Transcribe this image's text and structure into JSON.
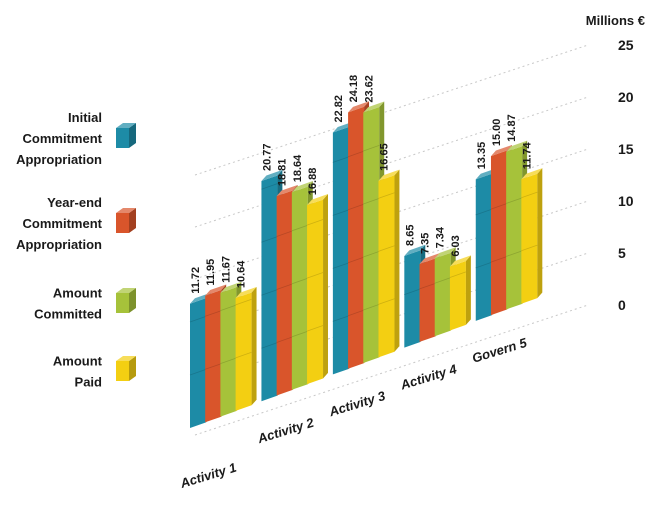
{
  "chart_data": {
    "type": "bar",
    "unit_label": "Millions €",
    "ylim": [
      0,
      25
    ],
    "yticks": [
      0,
      5,
      10,
      15,
      20,
      25
    ],
    "categories": [
      "Activity 1",
      "Activity 2",
      "Activity 3",
      "Activity 4",
      "Govern 5"
    ],
    "series": [
      {
        "name": "Initial Commitment Appropriation",
        "legend_lines": [
          "Initial",
          "Commitment",
          "Appropriation"
        ],
        "color": "#1d8ba6",
        "values": [
          11.72,
          20.77,
          22.82,
          8.65,
          13.35
        ],
        "labels": [
          "11.72",
          "20.77",
          "22.82",
          "8.65",
          "13.35"
        ]
      },
      {
        "name": "Year-end Commitment Appropriation",
        "legend_lines": [
          "Year-end",
          "Commitment",
          "Appropriation"
        ],
        "color": "#d9552b",
        "values": [
          11.95,
          18.81,
          24.18,
          7.35,
          15.0
        ],
        "labels": [
          "11.95",
          "18.81",
          "24.18",
          "7.35",
          "15.00"
        ]
      },
      {
        "name": "Amount Committed",
        "legend_lines": [
          "Amount",
          "Committed"
        ],
        "color": "#a6c23a",
        "values": [
          11.67,
          18.64,
          23.62,
          7.34,
          14.87
        ],
        "labels": [
          "11.67",
          "18.64",
          "23.62",
          "7.34",
          "14.87"
        ]
      },
      {
        "name": "Amount Paid",
        "legend_lines": [
          "Amount",
          "Paid"
        ],
        "color": "#f3cf12",
        "values": [
          10.64,
          16.88,
          16.65,
          6.03,
          11.74
        ],
        "labels": [
          "10.64",
          "16.88",
          "16.65",
          "6.03",
          "11.74"
        ]
      }
    ],
    "grid": true,
    "legend": "left",
    "style": "3d-isometric"
  }
}
